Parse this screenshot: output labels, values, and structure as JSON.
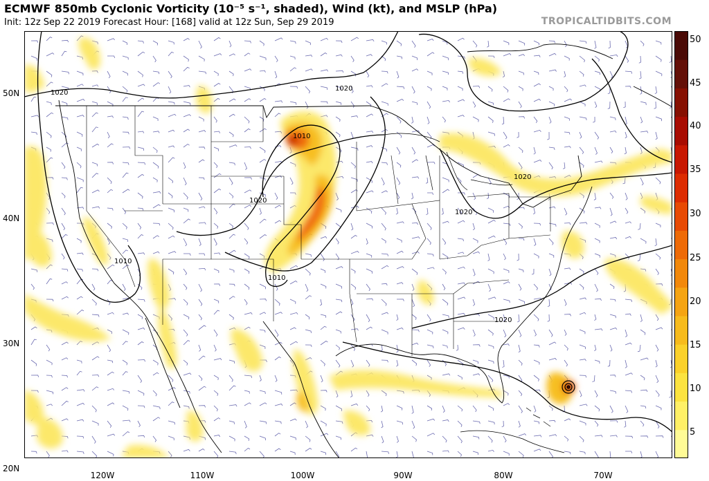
{
  "header": {
    "title": "ECMWF 850mb Cyclonic Vorticity (10⁻⁵ s⁻¹, shaded), Wind (kt), and MSLP (hPa)",
    "subtitle": "Init: 12z Sep 22 2019   Forecast Hour: [168]   valid at 12z Sun, Sep 29 2019",
    "brand": "TROPICALTIDBITS.COM"
  },
  "axes": {
    "lat_labels": [
      "50N",
      "40N",
      "30N",
      "20N"
    ],
    "lon_labels": [
      "120W",
      "110W",
      "100W",
      "90W",
      "80W",
      "70W"
    ]
  },
  "colorbar": {
    "ticks": [
      "50",
      "45",
      "40",
      "35",
      "30",
      "25",
      "20",
      "15",
      "10",
      "5"
    ],
    "colors": [
      "#fffb96",
      "#fff066",
      "#fce340",
      "#fbd12a",
      "#f7bb1c",
      "#f5a412",
      "#f2880a",
      "#ee6a06",
      "#e84a04",
      "#dd2c02",
      "#c81802",
      "#a80c02",
      "#861002",
      "#641008",
      "#4a0a06"
    ]
  },
  "map": {
    "isobar_labels": [
      "1020",
      "1020",
      "1010",
      "1020",
      "1010",
      "1010",
      "1020",
      "1020",
      "1020"
    ],
    "colors": {
      "vort_light": "#fce86a",
      "vort_mid": "#f7bf24",
      "vort_high": "#ef6c0c",
      "vort_core": "#c11b04",
      "border": "#000000",
      "wind": "#6b6bb0"
    }
  }
}
